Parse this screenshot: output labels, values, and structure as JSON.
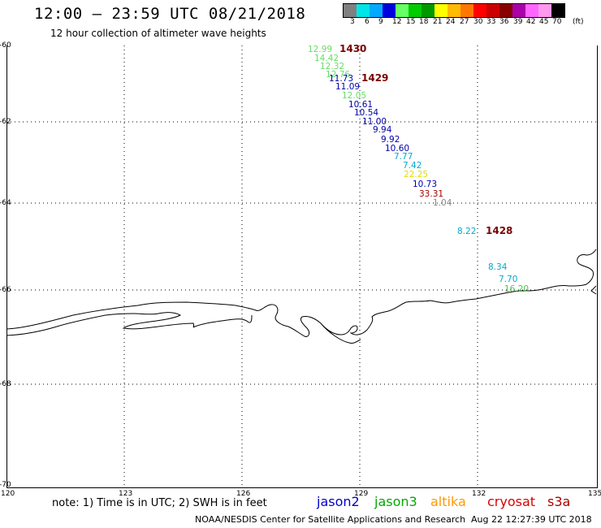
{
  "title": "12:00 – 23:59 UTC 08/21/2018",
  "subtitle": "12 hour collection of altimeter wave heights",
  "legend": {
    "colors": [
      "#808080",
      "#00e5e5",
      "#00aaff",
      "#0000dd",
      "#66ff66",
      "#00cc00",
      "#009900",
      "#ffff00",
      "#ffbb00",
      "#ff7700",
      "#ff0000",
      "#cc0000",
      "#880000",
      "#aa00aa",
      "#ff66ff",
      "#ff99ee",
      "#000000"
    ],
    "labels": [
      "3",
      "6",
      "9",
      "12",
      "15",
      "18",
      "21",
      "24",
      "27",
      "30",
      "33",
      "36",
      "39",
      "42",
      "45",
      "70",
      "(ft)"
    ]
  },
  "axes": {
    "y_ticks": [
      "-60",
      "-62",
      "-64",
      "-66",
      "-68",
      "-70"
    ],
    "x_ticks": [
      "120",
      "123",
      "126",
      "129",
      "132",
      "135"
    ]
  },
  "observations": [
    {
      "value": "12.99",
      "color": "#66dd66"
    },
    {
      "value": "14.42",
      "color": "#66dd66"
    },
    {
      "value": "12.32",
      "color": "#66dd66"
    },
    {
      "value": "12.76",
      "color": "#66dd66"
    },
    {
      "value": "11.73",
      "color": "#0000aa"
    },
    {
      "value": "11.09",
      "color": "#0000aa"
    },
    {
      "value": "12.05",
      "color": "#66dd66"
    },
    {
      "value": "10.61",
      "color": "#0000aa"
    },
    {
      "value": "10.54",
      "color": "#0000aa"
    },
    {
      "value": "11.00",
      "color": "#0000aa"
    },
    {
      "value": "9.94",
      "color": "#0000aa"
    },
    {
      "value": "9.92",
      "color": "#0000aa"
    },
    {
      "value": "10.60",
      "color": "#0000aa"
    },
    {
      "value": "7.77",
      "color": "#00aacc"
    },
    {
      "value": "7.42",
      "color": "#00aacc"
    },
    {
      "value": "22.25",
      "color": "#dddd00"
    },
    {
      "value": "10.73",
      "color": "#0000aa"
    },
    {
      "value": "33.31",
      "color": "#aa0000"
    },
    {
      "value": "1.04",
      "color": "#888888"
    },
    {
      "value": "8.22",
      "color": "#00aacc"
    },
    {
      "value": "8.34",
      "color": "#00aacc"
    },
    {
      "value": "7.70",
      "color": "#00aacc"
    },
    {
      "value": "16.20",
      "color": "#44cc44"
    }
  ],
  "pass_times": [
    "1430",
    "1429",
    "1428"
  ],
  "note": "note: 1) Time is in UTC; 2) SWH is in feet",
  "satellites": [
    {
      "name": "jason2",
      "color": "#0000cc"
    },
    {
      "name": "jason3",
      "color": "#00aa00"
    },
    {
      "name": "altika",
      "color": "#ff9900"
    },
    {
      "name": "cryosat",
      "color": "#dd0000"
    },
    {
      "name": "s3a",
      "color": "#aa0000"
    }
  ],
  "credit": "NOAA/NESDIS Center for Satellite Applications and Research",
  "timestamp": "Aug 22 12:27:39 UTC 2018"
}
